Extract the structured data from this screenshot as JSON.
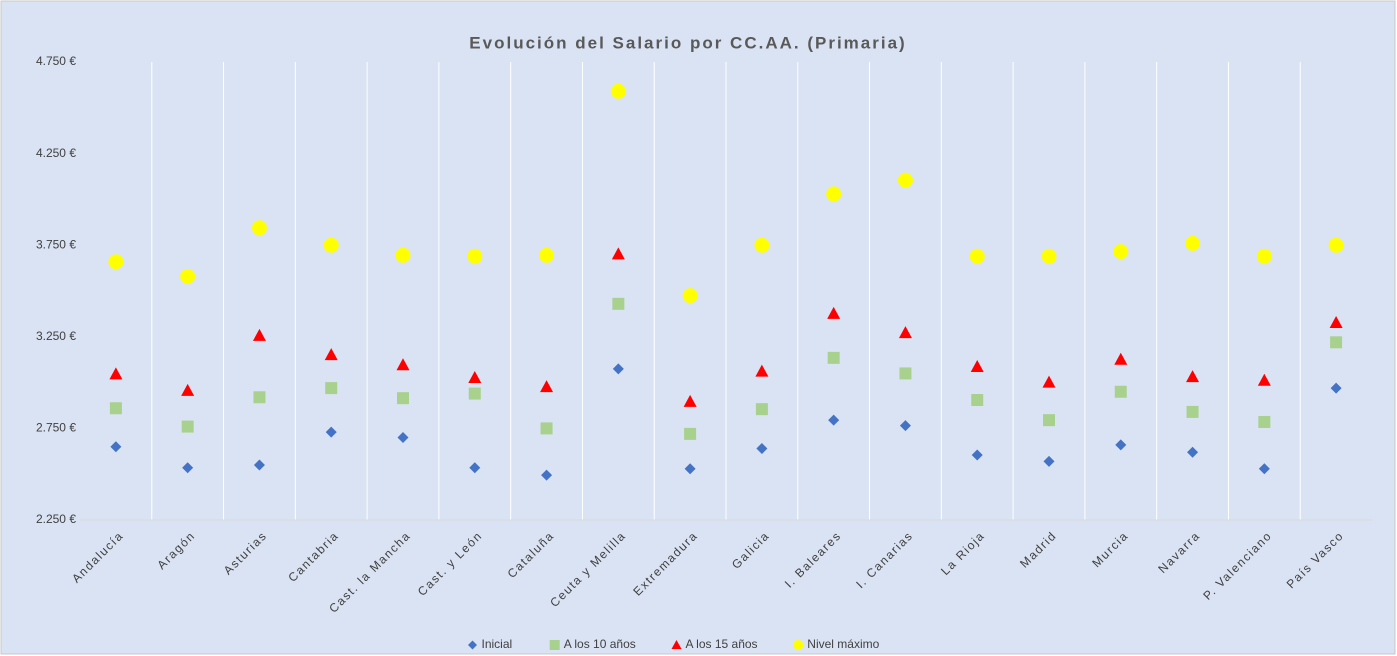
{
  "chart_data": {
    "type": "scatter",
    "title": "Evolución del Salario por CC.AA. (Primaria)",
    "categories": [
      "Andalucía",
      "Aragón",
      "Asturias",
      "Cantabria",
      "Cast. la Mancha",
      "Cast. y León",
      "Cataluña",
      "Ceuta y Melilla",
      "Extremadura",
      "Galicia",
      "I. Baleares",
      "I. Canarias",
      "La Rioja",
      "Madrid",
      "Murcia",
      "Navarra",
      "P. Valenciano",
      "País Vasco"
    ],
    "series": [
      {
        "name": "Inicial",
        "color": "#4472c4",
        "marker": "diamond",
        "values": [
          2650,
          2535,
          2550,
          2730,
          2700,
          2535,
          2495,
          3075,
          2530,
          2640,
          2795,
          2765,
          2605,
          2570,
          2660,
          2620,
          2530,
          2970
        ]
      },
      {
        "name": "A los 10 años",
        "color": "#a9d18e",
        "marker": "square",
        "values": [
          2860,
          2760,
          2920,
          2970,
          2915,
          2940,
          2750,
          3430,
          2720,
          2855,
          3135,
          3050,
          2905,
          2795,
          2950,
          2840,
          2785,
          3220
        ]
      },
      {
        "name": "A los 15 años",
        "color": "#ff0000",
        "marker": "triangle",
        "values": [
          3045,
          2955,
          3255,
          3150,
          3095,
          3025,
          2975,
          3700,
          2895,
          3060,
          3375,
          3270,
          3085,
          3000,
          3125,
          3030,
          3010,
          3325
        ]
      },
      {
        "name": "Nivel máximo",
        "color": "#ffff00",
        "marker": "circle",
        "values": [
          3660,
          3580,
          3845,
          3750,
          3695,
          3690,
          3695,
          4590,
          3475,
          3750,
          4030,
          4105,
          3690,
          3690,
          3715,
          3760,
          3690,
          3750
        ]
      }
    ],
    "ylim": [
      2250,
      4750
    ],
    "yticks": [
      {
        "value": 2250,
        "label": "2.250 €"
      },
      {
        "value": 2750,
        "label": "2.750 €"
      },
      {
        "value": 3250,
        "label": "3.250 €"
      },
      {
        "value": 3750,
        "label": "3.750 €"
      },
      {
        "value": 4250,
        "label": "4.250 €"
      },
      {
        "value": 4750,
        "label": "4.750 €"
      }
    ],
    "grid": true,
    "legend": "bottom"
  }
}
